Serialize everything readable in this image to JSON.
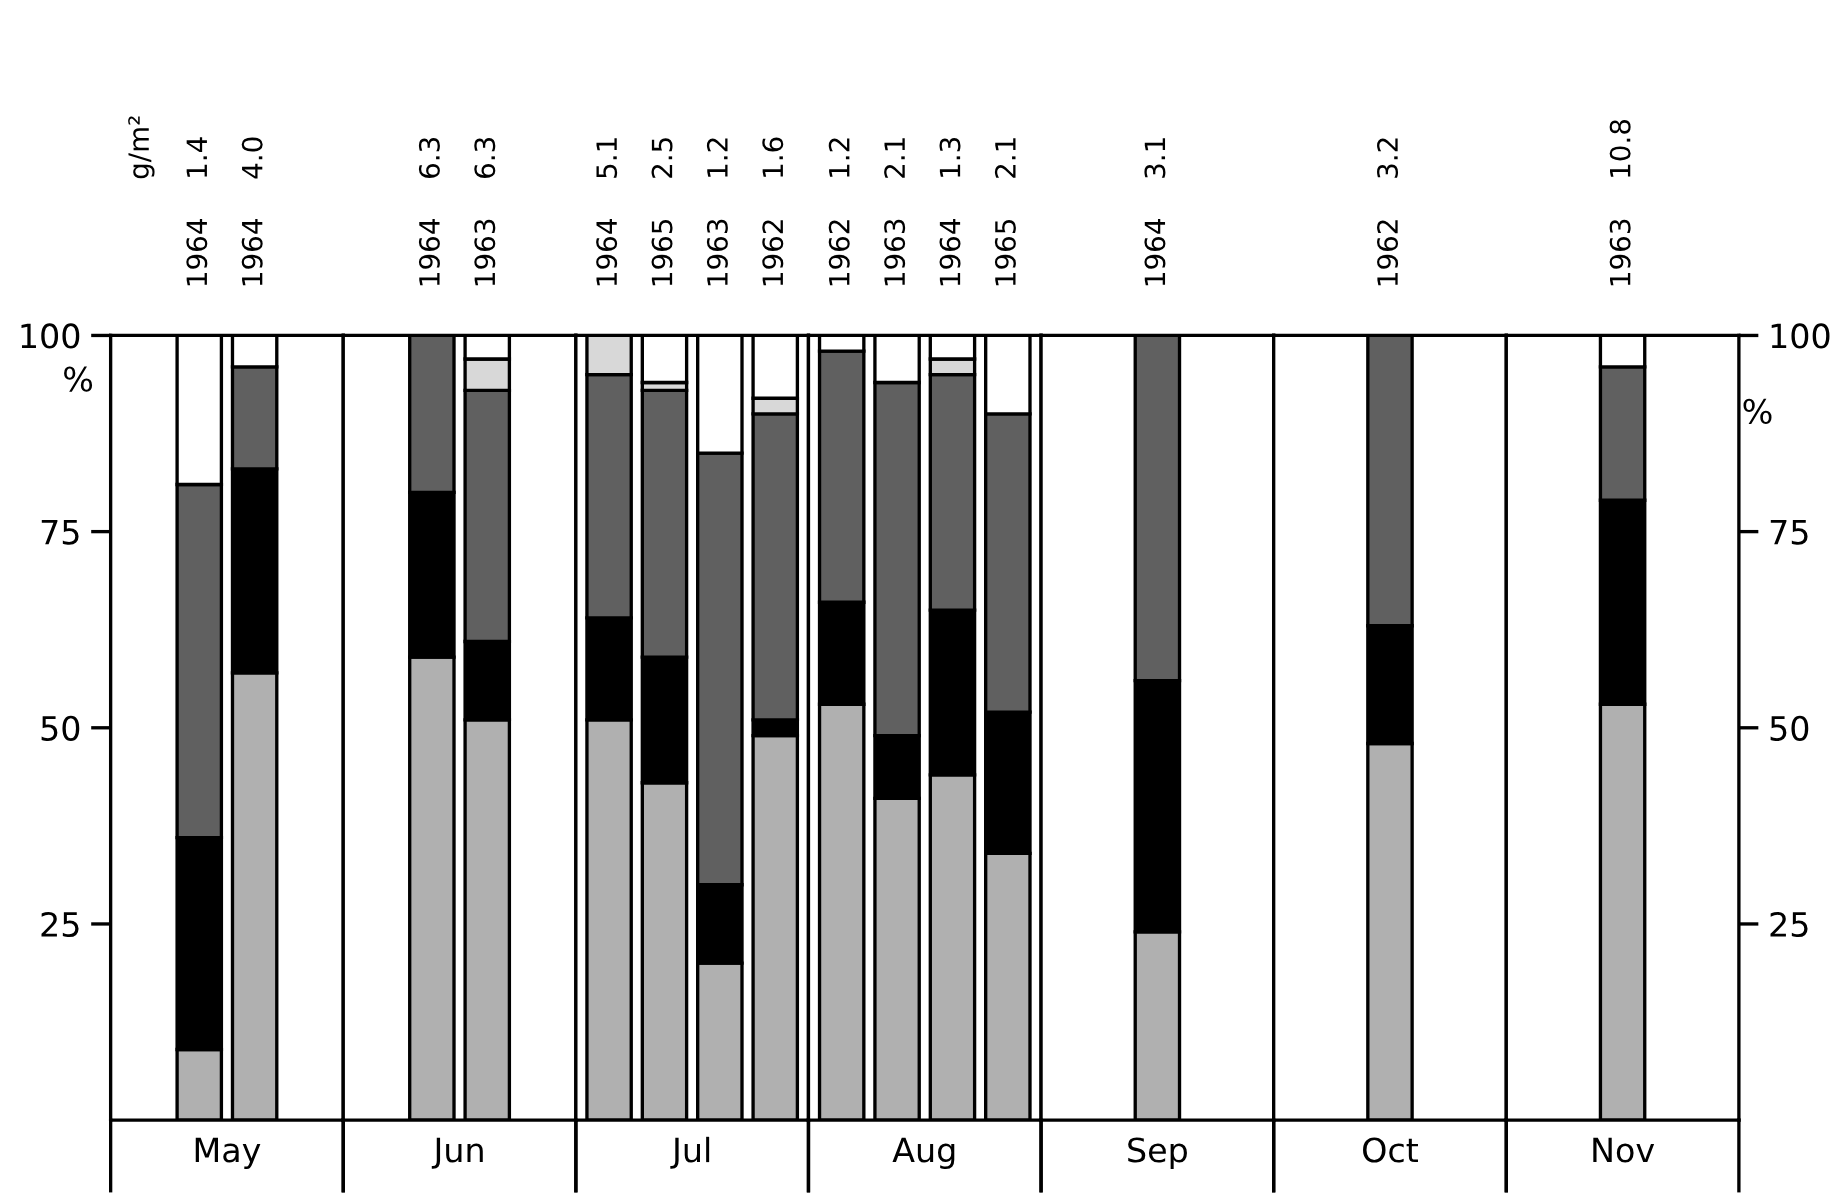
{
  "chart_data": [
    {
      "type": "bar",
      "stacked": true,
      "xlabel": "May",
      "ylabel": "%",
      "categories": [
        "1964",
        "1964"
      ],
      "ylim": [
        0,
        100
      ],
      "yticks": [
        25,
        50,
        75,
        100
      ],
      "annotations": [
        "1.4",
        "4.0",
        "g/m²"
      ],
      "series": [
        {
          "color": "#b0b0b0",
          "values": [
            9,
            57
          ]
        },
        {
          "color": "#000000",
          "values": [
            27,
            26
          ]
        },
        {
          "color": "#606060",
          "values": [
            45,
            13
          ]
        },
        {
          "color": "#d8d8d8",
          "values": [
            0,
            0
          ]
        },
        {
          "color": "#ffffff",
          "values": [
            19,
            4
          ]
        }
      ]
    },
    {
      "type": "bar",
      "stacked": true,
      "xlabel": "Jun",
      "categories": [
        "1964",
        "1963"
      ],
      "ylim": [
        0,
        100
      ],
      "tick_labels": "x",
      "annotations": [
        "6.3",
        "6.3"
      ],
      "series": [
        {
          "color": "#b0b0b0",
          "values": [
            59,
            51
          ]
        },
        {
          "color": "#000000",
          "values": [
            21,
            10
          ]
        },
        {
          "color": "#606060",
          "values": [
            20,
            32
          ]
        },
        {
          "color": "#d8d8d8",
          "values": [
            0,
            4
          ]
        },
        {
          "color": "#ffffff",
          "values": [
            0,
            3
          ]
        }
      ]
    },
    {
      "type": "bar",
      "stacked": true,
      "xlabel": "Jul",
      "categories": [
        "1964",
        "1965",
        "1963",
        "1962"
      ],
      "ylim": [
        0,
        100
      ],
      "tick_labels": "x",
      "annotations": [
        "5.1",
        "2.5",
        "1.2",
        "1.6"
      ],
      "series": [
        {
          "color": "#b0b0b0",
          "values": [
            51,
            43,
            20,
            49
          ]
        },
        {
          "color": "#000000",
          "values": [
            13,
            16,
            10,
            2
          ]
        },
        {
          "color": "#606060",
          "values": [
            31,
            34,
            55,
            39
          ]
        },
        {
          "color": "#d8d8d8",
          "values": [
            5,
            1,
            0,
            2
          ]
        },
        {
          "color": "#ffffff",
          "values": [
            0,
            6,
            15,
            8
          ]
        }
      ]
    },
    {
      "type": "bar",
      "stacked": true,
      "xlabel": "Aug",
      "categories": [
        "1962",
        "1963",
        "1964",
        "1965"
      ],
      "ylim": [
        0,
        100
      ],
      "tick_labels": "x",
      "annotations": [
        "1.2",
        "2.1",
        "1.3",
        "2.1"
      ],
      "series": [
        {
          "color": "#b0b0b0",
          "values": [
            53,
            41,
            44,
            34
          ]
        },
        {
          "color": "#000000",
          "values": [
            13,
            8,
            21,
            18
          ]
        },
        {
          "color": "#606060",
          "values": [
            32,
            45,
            30,
            38
          ]
        },
        {
          "color": "#d8d8d8",
          "values": [
            0,
            0,
            2,
            0
          ]
        },
        {
          "color": "#ffffff",
          "values": [
            2,
            6,
            3,
            10
          ]
        }
      ]
    },
    {
      "type": "bar",
      "stacked": true,
      "xlabel": "Sep",
      "categories": [
        "1964"
      ],
      "ylim": [
        0,
        100
      ],
      "tick_labels": "x",
      "annotations": [
        "3.1"
      ],
      "series": [
        {
          "color": "#b0b0b0",
          "values": [
            24
          ]
        },
        {
          "color": "#000000",
          "values": [
            32
          ]
        },
        {
          "color": "#606060",
          "values": [
            44
          ]
        },
        {
          "color": "#d8d8d8",
          "values": [
            0
          ]
        },
        {
          "color": "#ffffff",
          "values": [
            0
          ]
        }
      ]
    },
    {
      "type": "bar",
      "stacked": true,
      "xlabel": "Oct",
      "categories": [
        "1962"
      ],
      "ylim": [
        0,
        100
      ],
      "tick_labels": "x",
      "annotations": [
        "3.2"
      ],
      "series": [
        {
          "color": "#b0b0b0",
          "values": [
            48
          ]
        },
        {
          "color": "#000000",
          "values": [
            15
          ]
        },
        {
          "color": "#606060",
          "values": [
            37
          ]
        },
        {
          "color": "#d8d8d8",
          "values": [
            0
          ]
        },
        {
          "color": "#ffffff",
          "values": [
            0
          ]
        }
      ]
    },
    {
      "type": "bar",
      "stacked": true,
      "xlabel": "Nov",
      "ylabel": "%",
      "categories": [
        "1963"
      ],
      "ylim": [
        0,
        100
      ],
      "yticks": [
        25,
        50,
        75,
        100
      ],
      "annotations": [
        "10.8"
      ],
      "series": [
        {
          "color": "#b0b0b0",
          "values": [
            53
          ]
        },
        {
          "color": "#000000",
          "values": [
            26
          ]
        },
        {
          "color": "#606060",
          "values": [
            17
          ]
        },
        {
          "color": "#d8d8d8",
          "values": [
            0
          ]
        },
        {
          "color": "#ffffff",
          "values": [
            4
          ]
        }
      ]
    }
  ]
}
